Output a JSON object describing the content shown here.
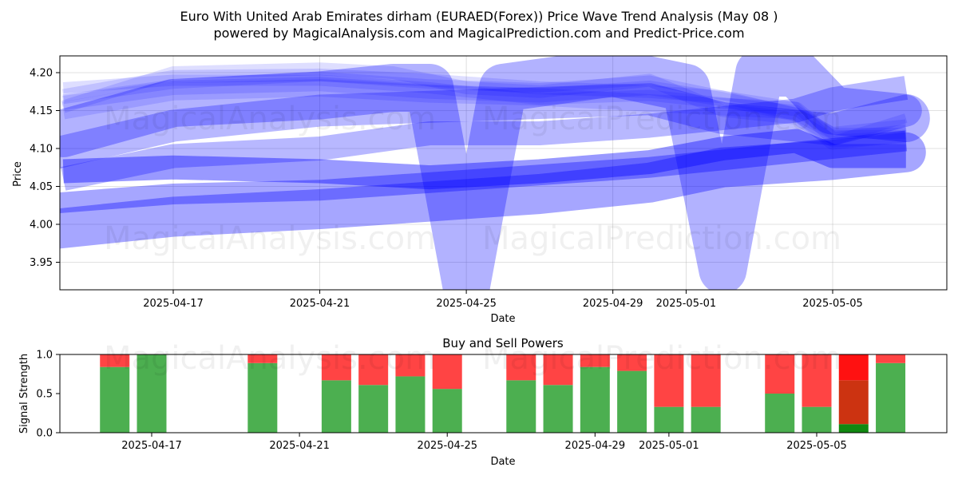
{
  "header": {
    "title": "Euro With United Arab Emirates dirham (EURAED(Forex)) Price Wave Trend Analysis (May 08 )",
    "subtitle": "powered by MagicalAnalysis.com and MagicalPrediction.com and Predict-Price.com"
  },
  "watermarks": [
    "MagicalAnalysis.com",
    "MagicalPrediction.com"
  ],
  "colors": {
    "wave": "#0000ff",
    "buy": "#4caf50",
    "sell": "#ff4444",
    "buy_dark": "#118811",
    "sell_dark": "#cc3311",
    "sell_bright": "#ff1111"
  },
  "chart_data": [
    {
      "type": "line",
      "title": "",
      "xlabel": "Date",
      "ylabel": "Price",
      "x_ticks": [
        "2025-04-17",
        "2025-04-21",
        "2025-04-25",
        "2025-04-29",
        "2025-05-01",
        "2025-05-05"
      ],
      "y_ticks": [
        "3.95",
        "4.00",
        "4.05",
        "4.10",
        "4.15",
        "4.20"
      ],
      "ylim": [
        3.91,
        4.225
      ],
      "xlim": [
        "2025-04-13",
        "2025-05-08"
      ],
      "grid": true,
      "series": [
        {
          "x": [
            "2025-04-14",
            "2025-04-17",
            "2025-04-21",
            "2025-04-24",
            "2025-04-27",
            "2025-04-30",
            "2025-05-02",
            "2025-05-04",
            "2025-05-05",
            "2025-05-07"
          ],
          "y": [
            4.17,
            4.195,
            4.197,
            4.19,
            4.18,
            4.175,
            4.168,
            4.145,
            4.12,
            4.13
          ],
          "w": 16,
          "op": 0.13
        },
        {
          "x": [
            "2025-04-14",
            "2025-04-17",
            "2025-04-21",
            "2025-04-24",
            "2025-04-27",
            "2025-04-30",
            "2025-05-02",
            "2025-05-04",
            "2025-05-05",
            "2025-05-07"
          ],
          "y": [
            4.15,
            4.175,
            4.18,
            4.172,
            4.168,
            4.16,
            4.155,
            4.15,
            4.11,
            4.12
          ],
          "w": 22,
          "op": 0.13
        },
        {
          "x": [
            "2025-04-14",
            "2025-04-17",
            "2025-04-21",
            "2025-04-24",
            "2025-04-27",
            "2025-04-30",
            "2025-05-02",
            "2025-05-04",
            "2025-05-05",
            "2025-05-07"
          ],
          "y": [
            4.18,
            4.19,
            4.19,
            4.18,
            4.165,
            4.17,
            4.16,
            4.15,
            4.12,
            4.12
          ],
          "w": 14,
          "op": 0.13
        },
        {
          "x": [
            "2025-04-14",
            "2025-04-17",
            "2025-04-21",
            "2025-04-24",
            "2025-04-27",
            "2025-04-30",
            "2025-05-02",
            "2025-05-04",
            "2025-05-05",
            "2025-05-07"
          ],
          "y": [
            4.16,
            4.18,
            4.185,
            4.175,
            4.17,
            4.18,
            4.165,
            4.145,
            4.115,
            4.115
          ],
          "w": 18,
          "op": 0.13
        },
        {
          "x": [
            "2025-04-14",
            "2025-04-17",
            "2025-04-21",
            "2025-04-23",
            "2025-04-25",
            "2025-04-27",
            "2025-04-30",
            "2025-05-02",
            "2025-05-04",
            "2025-05-05",
            "2025-05-07"
          ],
          "y": [
            4.155,
            4.2,
            4.205,
            4.2,
            4.18,
            4.175,
            4.19,
            4.15,
            4.14,
            4.11,
            4.115
          ],
          "w": 16,
          "op": 0.13
        },
        {
          "x": [
            "2025-04-14",
            "2025-04-17",
            "2025-04-21",
            "2025-04-24",
            "2025-04-27",
            "2025-04-30",
            "2025-05-02",
            "2025-05-04",
            "2025-05-05",
            "2025-05-07"
          ],
          "y": [
            4.165,
            4.185,
            4.195,
            4.185,
            4.18,
            4.19,
            4.17,
            4.155,
            4.11,
            4.14
          ],
          "w": 12,
          "op": 0.13
        },
        {
          "x": [
            "2025-04-14",
            "2025-04-17",
            "2025-04-21",
            "2025-04-24",
            "2025-04-27",
            "2025-04-30",
            "2025-05-02",
            "2025-05-04",
            "2025-05-05",
            "2025-05-07"
          ],
          "y": [
            4.06,
            4.09,
            4.1,
            4.12,
            4.12,
            4.13,
            4.14,
            4.15,
            4.165,
            4.18
          ],
          "w": 30,
          "op": 0.28
        },
        {
          "x": [
            "2025-04-13",
            "2025-04-17",
            "2025-04-21",
            "2025-04-24",
            "2025-04-27",
            "2025-04-30",
            "2025-05-02",
            "2025-05-05",
            "2025-05-07"
          ],
          "y": [
            4.085,
            4.13,
            4.15,
            4.155,
            4.16,
            4.165,
            4.14,
            4.125,
            4.15
          ],
          "w": 40,
          "op": 0.28
        },
        {
          "x": [
            "2025-04-14",
            "2025-04-17",
            "2025-04-21",
            "2025-04-23",
            "2025-04-24",
            "2025-04-25",
            "2025-04-26",
            "2025-04-29",
            "2025-05-01",
            "2025-05-02",
            "2025-05-03",
            "2025-05-04",
            "2025-05-05",
            "2025-05-07"
          ],
          "y": [
            4.12,
            4.16,
            4.17,
            4.18,
            4.18,
            3.92,
            4.18,
            4.2,
            4.18,
            3.94,
            4.2,
            4.2,
            4.15,
            4.14
          ],
          "w": 60,
          "op": 0.3
        },
        {
          "x": [
            "2025-04-14",
            "2025-04-17",
            "2025-04-21",
            "2025-04-24",
            "2025-04-27",
            "2025-04-30",
            "2025-05-02",
            "2025-05-04",
            "2025-05-05",
            "2025-05-07"
          ],
          "y": [
            4.07,
            4.075,
            4.07,
            4.062,
            4.07,
            4.082,
            4.1,
            4.11,
            4.09,
            4.09
          ],
          "w": 30,
          "op": 0.4
        },
        {
          "x": [
            "2025-04-13",
            "2025-04-17",
            "2025-04-21",
            "2025-04-24",
            "2025-04-27",
            "2025-04-30",
            "2025-05-02",
            "2025-05-05",
            "2025-05-07"
          ],
          "y": [
            3.99,
            4.01,
            4.02,
            4.03,
            4.04,
            4.055,
            4.075,
            4.085,
            4.095
          ],
          "w": 50,
          "op": 0.35
        },
        {
          "x": [
            "2025-04-13",
            "2025-04-17",
            "2025-04-21",
            "2025-04-24",
            "2025-04-27",
            "2025-04-30",
            "2025-05-02",
            "2025-05-05",
            "2025-05-07"
          ],
          "y": [
            4.025,
            4.04,
            4.045,
            4.055,
            4.065,
            4.075,
            4.085,
            4.1,
            4.11
          ],
          "w": 26,
          "op": 0.35
        }
      ]
    },
    {
      "type": "bar",
      "title": "Buy and Sell Powers",
      "xlabel": "Date",
      "ylabel": "Signal Strength",
      "x_ticks": [
        "2025-04-17",
        "2025-04-21",
        "2025-04-25",
        "2025-04-29",
        "2025-05-01",
        "2025-05-05"
      ],
      "y_ticks": [
        "0.0",
        "0.5",
        "1.0"
      ],
      "ylim": [
        0,
        1
      ],
      "bars": [
        {
          "date": "2025-04-16",
          "buy": 0.84,
          "sell": 0.16
        },
        {
          "date": "2025-04-17",
          "buy": 1.0,
          "sell": 0.0
        },
        {
          "date": "2025-04-20",
          "buy": 0.89,
          "sell": 0.11
        },
        {
          "date": "2025-04-22",
          "buy": 0.67,
          "sell": 0.33
        },
        {
          "date": "2025-04-23",
          "buy": 0.61,
          "sell": 0.39
        },
        {
          "date": "2025-04-24",
          "buy": 0.72,
          "sell": 0.28
        },
        {
          "date": "2025-04-25",
          "buy": 0.56,
          "sell": 0.44
        },
        {
          "date": "2025-04-27",
          "buy": 0.67,
          "sell": 0.33
        },
        {
          "date": "2025-04-28",
          "buy": 0.61,
          "sell": 0.39
        },
        {
          "date": "2025-04-29",
          "buy": 0.84,
          "sell": 0.16
        },
        {
          "date": "2025-04-30",
          "buy": 0.79,
          "sell": 0.21
        },
        {
          "date": "2025-05-01",
          "buy": 0.33,
          "sell": 0.67
        },
        {
          "date": "2025-05-02",
          "buy": 0.33,
          "sell": 0.67
        },
        {
          "date": "2025-05-04",
          "buy": 0.5,
          "sell": 0.5
        },
        {
          "date": "2025-05-05",
          "buy": 0.33,
          "sell": 0.67
        },
        {
          "date": "2025-05-06",
          "buy": 0.11,
          "sell": 0.89,
          "mixed": [
            0.11,
            0.67,
            1.0
          ]
        },
        {
          "date": "2025-05-07",
          "buy": 0.89,
          "sell": 0.11
        }
      ]
    }
  ]
}
